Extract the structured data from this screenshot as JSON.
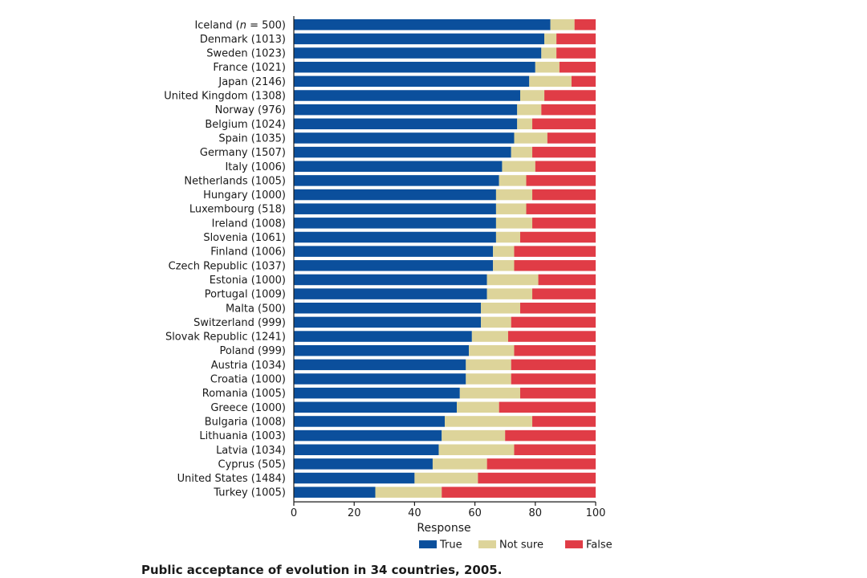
{
  "caption": "Public acceptance of evolution in 34 countries, 2005.",
  "chart_data": {
    "type": "bar",
    "orientation": "horizontal",
    "stacked": true,
    "title": "Public acceptance of evolution in 34 countries, 2005.",
    "xlabel": "Response",
    "ylabel": "",
    "xlim": [
      0,
      100
    ],
    "xticks": [
      "0",
      "20",
      "40",
      "60",
      "80",
      "100"
    ],
    "categories": [
      "Iceland (n = 500)",
      "Denmark (1013)",
      "Sweden (1023)",
      "France (1021)",
      "Japan (2146)",
      "United Kingdom (1308)",
      "Norway (976)",
      "Belgium (1024)",
      "Spain (1035)",
      "Germany (1507)",
      "Italy (1006)",
      "Netherlands (1005)",
      "Hungary (1000)",
      "Luxembourg (518)",
      "Ireland (1008)",
      "Slovenia (1061)",
      "Finland (1006)",
      "Czech Republic (1037)",
      "Estonia (1000)",
      "Portugal (1009)",
      "Malta (500)",
      "Switzerland (999)",
      "Slovak Republic (1241)",
      "Poland (999)",
      "Austria (1034)",
      "Croatia (1000)",
      "Romania (1005)",
      "Greece (1000)",
      "Bulgaria (1008)",
      "Lithuania (1003)",
      "Latvia (1034)",
      "Cyprus (505)",
      "United States (1484)",
      "Turkey (1005)"
    ],
    "series": [
      {
        "name": "True",
        "color": "#0b4f9c",
        "values": [
          85,
          83,
          82,
          80,
          78,
          75,
          74,
          74,
          73,
          72,
          69,
          68,
          67,
          67,
          67,
          67,
          66,
          66,
          64,
          64,
          62,
          62,
          59,
          58,
          57,
          57,
          55,
          54,
          50,
          49,
          48,
          46,
          40,
          27
        ]
      },
      {
        "name": "Not sure",
        "color": "#ddd49a",
        "values": [
          8,
          4,
          5,
          8,
          14,
          8,
          8,
          5,
          11,
          7,
          11,
          9,
          12,
          10,
          12,
          8,
          7,
          7,
          17,
          15,
          13,
          10,
          12,
          15,
          15,
          15,
          20,
          14,
          29,
          21,
          25,
          18,
          21,
          22
        ]
      },
      {
        "name": "False",
        "color": "#e03c46",
        "values": [
          7,
          13,
          13,
          12,
          8,
          17,
          18,
          21,
          16,
          21,
          20,
          23,
          21,
          23,
          21,
          25,
          27,
          27,
          19,
          21,
          25,
          28,
          29,
          27,
          28,
          28,
          25,
          32,
          21,
          30,
          27,
          36,
          39,
          51
        ]
      }
    ],
    "legend_position": "bottom",
    "grid": false
  }
}
